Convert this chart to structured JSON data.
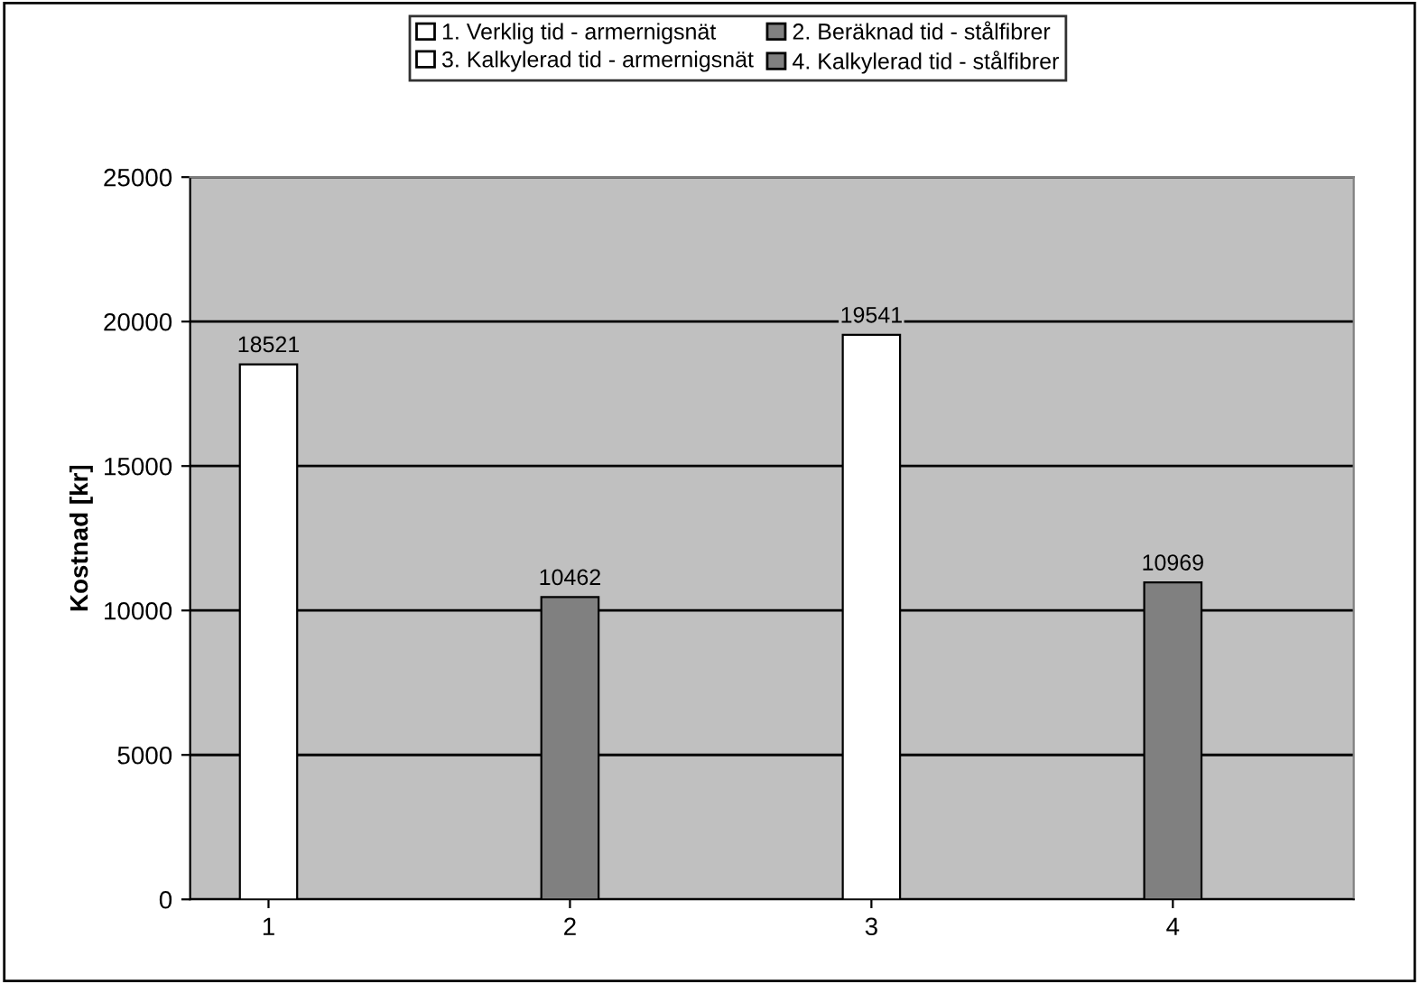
{
  "chart_data": {
    "type": "bar",
    "ylabel": "Kostnad [kr]",
    "categories": [
      "1",
      "2",
      "3",
      "4"
    ],
    "series": [
      {
        "name": "1. Verklig tid - armernigsnät",
        "color": "#ffffff",
        "values": [
          18521,
          null,
          null,
          null
        ]
      },
      {
        "name": "2. Beräknad tid - stålfibrer",
        "color": "#808080",
        "values": [
          null,
          10462,
          null,
          null
        ]
      },
      {
        "name": "3. Kalkylerad tid - armernigsnät",
        "color": "#ffffff",
        "values": [
          null,
          null,
          19541,
          null
        ]
      },
      {
        "name": "4. Kalkylerad tid - stålfibrer",
        "color": "#808080",
        "values": [
          null,
          null,
          null,
          10969
        ]
      }
    ],
    "ylim": [
      0,
      25000
    ],
    "yticks": [
      0,
      5000,
      10000,
      15000,
      20000,
      25000
    ],
    "grid": "y",
    "legend": "top",
    "data_labels": true
  }
}
